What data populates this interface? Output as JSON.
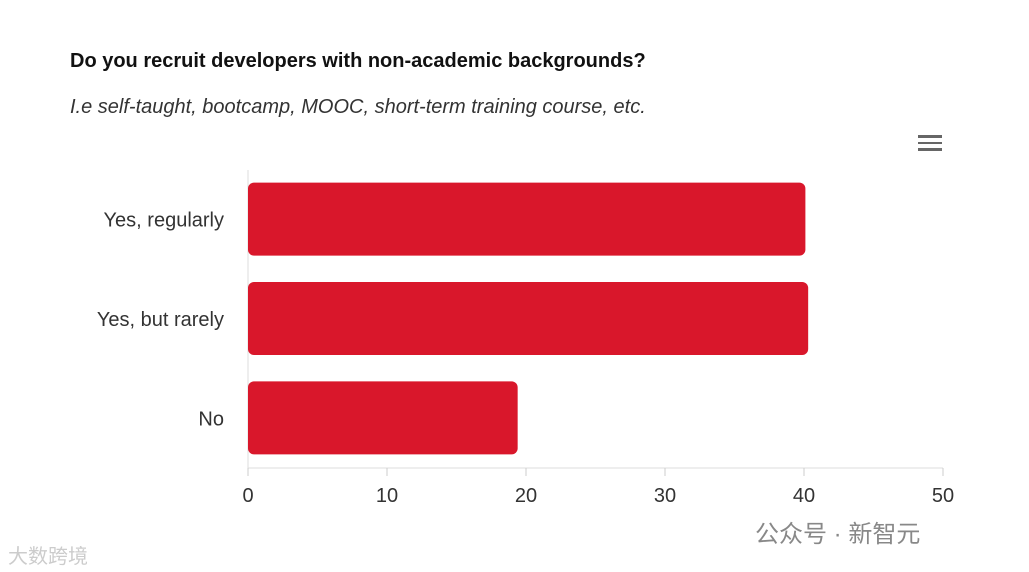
{
  "chart_data": {
    "type": "bar",
    "orientation": "horizontal",
    "title": "Do you recruit developers with non-academic backgrounds?",
    "subtitle": "I.e self-taught, bootcamp, MOOC, short-term training course, etc.",
    "categories": [
      "Yes, regularly",
      "Yes, but rarely",
      "No"
    ],
    "values": [
      40.1,
      40.3,
      19.4
    ],
    "xlim": [
      0,
      50
    ],
    "xticks": [
      "0",
      "10",
      "20",
      "30",
      "40",
      "50"
    ],
    "grid": false,
    "bar_color": "#d9172b"
  },
  "menu_icon": "hamburger-menu-icon",
  "watermarks": {
    "wechat": "公众号 · 新智元",
    "site": "大数跨境"
  }
}
